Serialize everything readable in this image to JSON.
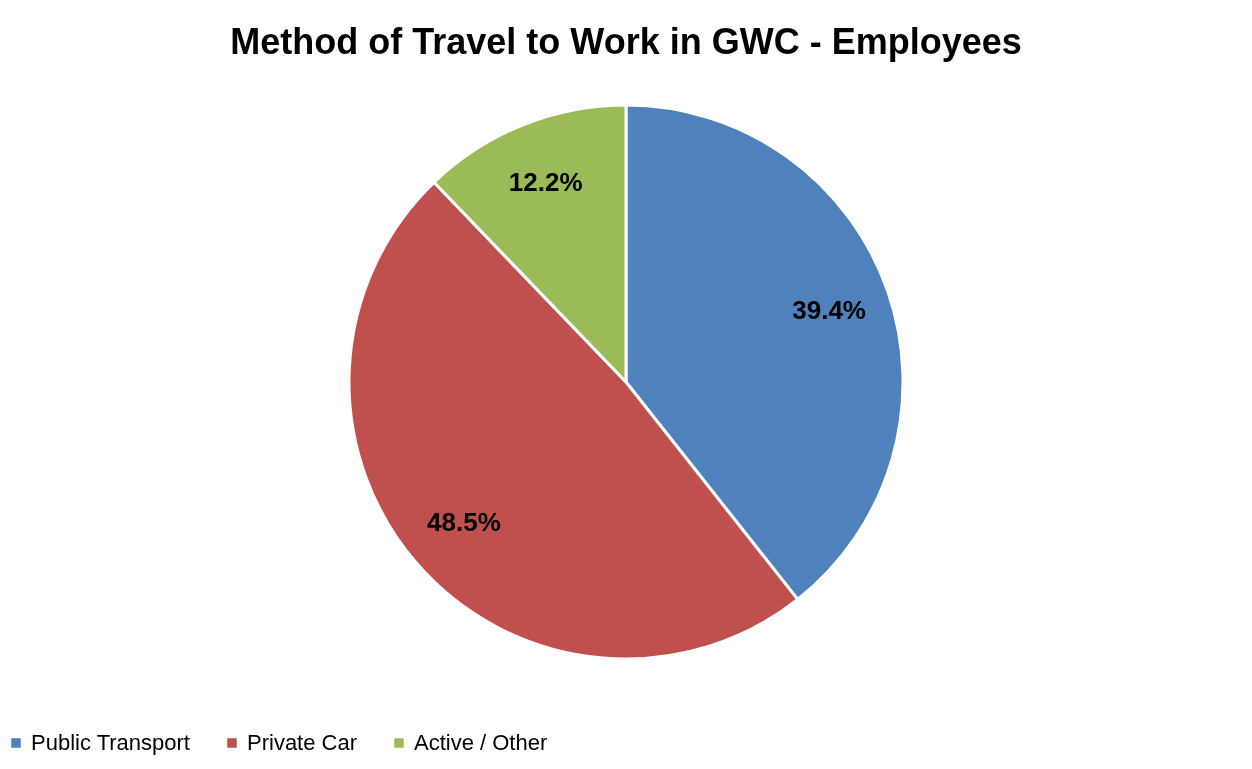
{
  "chart_data": {
    "type": "pie",
    "title": "Method of Travel to Work in GWC - Employees",
    "categories": [
      "Public Transport",
      "Private Car",
      "Active / Other"
    ],
    "values": [
      39.4,
      48.5,
      12.2
    ],
    "colors": [
      "#4f81bd",
      "#c0504d",
      "#9bbb59"
    ],
    "value_labels": [
      "39.4%",
      "48.5%",
      "12.2%"
    ],
    "legend": "bottom"
  }
}
